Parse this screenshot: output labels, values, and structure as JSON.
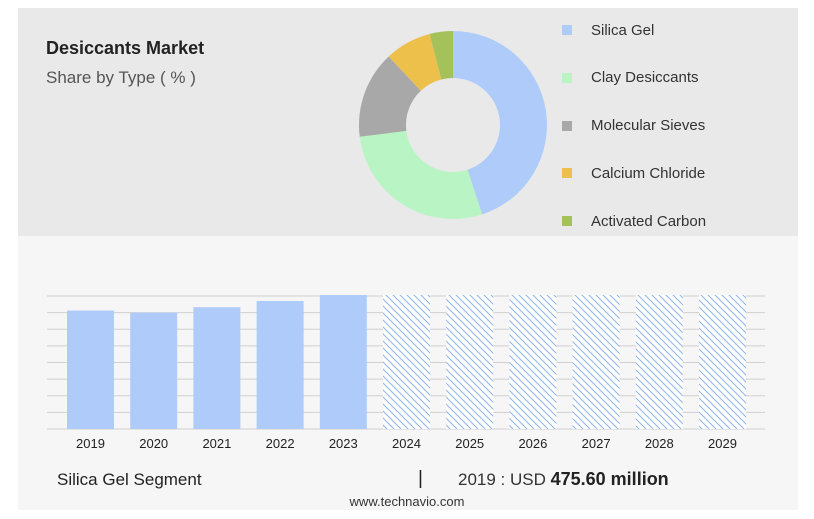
{
  "title": "Desiccants Market",
  "subtitle": "Share by Type ( % )",
  "chart_data": [
    {
      "type": "pie",
      "variant": "donut",
      "categories": [
        "Silica Gel",
        "Clay Desiccants",
        "Molecular Sieves",
        "Calcium Chloride",
        "Activated Carbon"
      ],
      "values": [
        45,
        28,
        15,
        8,
        4
      ],
      "colors": [
        "#aecbfa",
        "#b9f5c4",
        "#a8a8a8",
        "#edc04c",
        "#a4c259"
      ],
      "legend_position": "right"
    },
    {
      "type": "bar",
      "categories": [
        "2019",
        "2020",
        "2021",
        "2022",
        "2023",
        "2024",
        "2025",
        "2026",
        "2027",
        "2028",
        "2029"
      ],
      "values": [
        475.6,
        467,
        489,
        514,
        538,
        null,
        null,
        null,
        null,
        null,
        null
      ],
      "forecast_years": [
        "2024",
        "2025",
        "2026",
        "2027",
        "2028",
        "2029"
      ],
      "bar_color": "#aecbfa",
      "forecast_pattern": "diagonal-hatch",
      "ylim": [
        0,
        538
      ],
      "grid": true
    }
  ],
  "footer": {
    "segment": "Silica Gel Segment",
    "separator": "|",
    "value_prefix": "2019 : USD",
    "value_bold": "475.60 million"
  },
  "website": "www.technavio.com"
}
